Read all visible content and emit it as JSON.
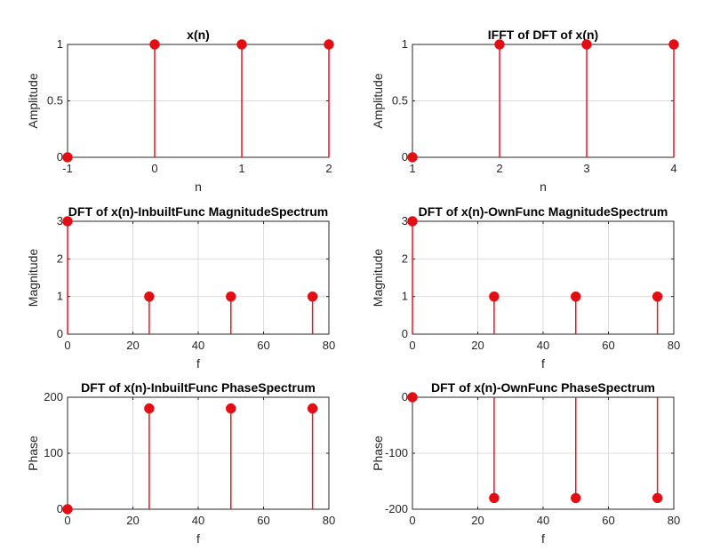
{
  "colors": {
    "stem": "#e8161c",
    "marker": "#e30e14",
    "grid": "#dcdcdc",
    "axes": "#262626",
    "background": "#ffffff"
  },
  "chart_data": [
    {
      "type": "stem",
      "title": "x(n)",
      "xlabel": "n",
      "ylabel": "Amplitude",
      "xlim": [
        -1,
        2
      ],
      "ylim": [
        0,
        1
      ],
      "xticks": [
        -1,
        0,
        1,
        2
      ],
      "xtick_labels": [
        "-1",
        "0",
        "1",
        "2"
      ],
      "yticks": [
        0,
        0.5,
        1
      ],
      "ytick_labels": [
        "0",
        "0.5",
        "1"
      ],
      "grid": true,
      "x": [
        -1,
        0,
        1,
        2
      ],
      "y": [
        0,
        1,
        1,
        1
      ]
    },
    {
      "type": "stem",
      "title": "IFFT of DFT of x(n)",
      "xlabel": "n",
      "ylabel": "Amplitude",
      "xlim": [
        1,
        4
      ],
      "ylim": [
        0,
        1
      ],
      "xticks": [
        1,
        2,
        3,
        4
      ],
      "xtick_labels": [
        "1",
        "2",
        "3",
        "4"
      ],
      "yticks": [
        0,
        0.5,
        1
      ],
      "ytick_labels": [
        "0",
        "0.5",
        "1"
      ],
      "grid": true,
      "x": [
        1,
        2,
        3,
        4
      ],
      "y": [
        0,
        1,
        1,
        1
      ]
    },
    {
      "type": "stem",
      "title": "DFT of x(n)-InbuiltFunc MagnitudeSpectrum",
      "xlabel": "f",
      "ylabel": "Magnitude",
      "xlim": [
        0,
        80
      ],
      "ylim": [
        0,
        3
      ],
      "xticks": [
        0,
        20,
        40,
        60,
        80
      ],
      "xtick_labels": [
        "0",
        "20",
        "40",
        "60",
        "80"
      ],
      "yticks": [
        0,
        1,
        2,
        3
      ],
      "ytick_labels": [
        "0",
        "1",
        "2",
        "3"
      ],
      "grid": true,
      "x": [
        0,
        25,
        50,
        75
      ],
      "y": [
        3,
        1,
        1,
        1
      ]
    },
    {
      "type": "stem",
      "title": "DFT of x(n)-OwnFunc MagnitudeSpectrum",
      "xlabel": "f",
      "ylabel": "Magnitude",
      "xlim": [
        0,
        80
      ],
      "ylim": [
        0,
        3
      ],
      "xticks": [
        0,
        20,
        40,
        60,
        80
      ],
      "xtick_labels": [
        "0",
        "20",
        "40",
        "60",
        "80"
      ],
      "yticks": [
        0,
        1,
        2,
        3
      ],
      "ytick_labels": [
        "0",
        "1",
        "2",
        "3"
      ],
      "grid": true,
      "x": [
        0,
        25,
        50,
        75
      ],
      "y": [
        3,
        1,
        1,
        1
      ]
    },
    {
      "type": "stem",
      "title": "DFT of x(n)-InbuiltFunc PhaseSpectrum",
      "xlabel": "f",
      "ylabel": "Phase",
      "xlim": [
        0,
        80
      ],
      "ylim": [
        0,
        200
      ],
      "xticks": [
        0,
        20,
        40,
        60,
        80
      ],
      "xtick_labels": [
        "0",
        "20",
        "40",
        "60",
        "80"
      ],
      "yticks": [
        0,
        100,
        200
      ],
      "ytick_labels": [
        "0",
        "100",
        "200"
      ],
      "grid": true,
      "x": [
        0,
        25,
        50,
        75
      ],
      "y": [
        0,
        180,
        180,
        180
      ]
    },
    {
      "type": "stem",
      "title": "DFT of x(n)-OwnFunc PhaseSpectrum",
      "xlabel": "f",
      "ylabel": "Phase",
      "xlim": [
        0,
        80
      ],
      "ylim": [
        -200,
        0
      ],
      "xticks": [
        0,
        20,
        40,
        60,
        80
      ],
      "xtick_labels": [
        "0",
        "20",
        "40",
        "60",
        "80"
      ],
      "yticks": [
        -200,
        -100,
        0
      ],
      "ytick_labels": [
        "-200",
        "-100",
        "0"
      ],
      "grid": true,
      "x": [
        0,
        25,
        50,
        75
      ],
      "y": [
        0,
        -180,
        -180,
        -180
      ]
    }
  ]
}
